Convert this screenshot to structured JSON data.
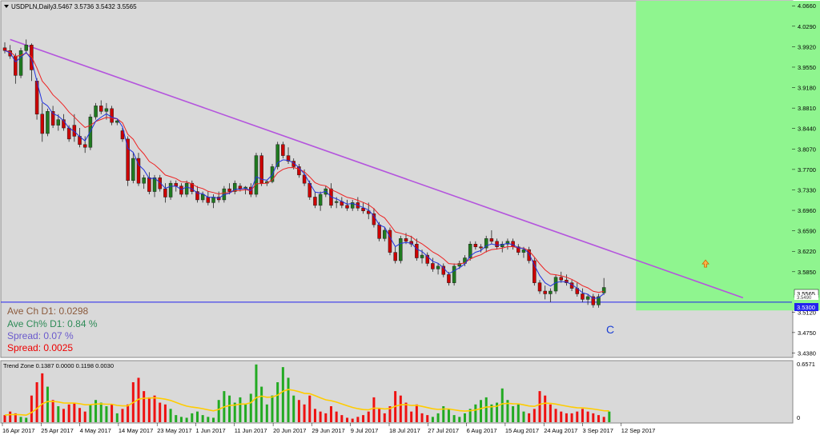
{
  "header": {
    "symbol_label": "USDPLN,Daily",
    "ohlc": "3.5467 3.5736 3.5432 3.5565"
  },
  "info": {
    "ave_ch": "Ave Ch D1: 0.0298",
    "ave_ch_pct": "Ave Ch% D1: 0.84 %",
    "spread_pct": "Spread: 0.07 %",
    "spread": "Spread: 0.0025"
  },
  "annotations": {
    "wave_label": "C"
  },
  "price_tags": {
    "last": "3.5565",
    "line": "3.5300",
    "stack_a": "3.5490",
    "stack_b": "3.5430"
  },
  "indicator": {
    "label": "Trend Zone 0.1387 0.0000 0.1198 0.0030",
    "max": "0.6571",
    "min": "0"
  },
  "colors": {
    "bg": "#d9d9d9",
    "bull": "#1f7a1f",
    "bear": "#cc0000",
    "zone": "#8ff58f",
    "trendline": "#b455dd",
    "hline": "#2222ee",
    "ma_fast": "#2233dd",
    "ma_slow": "#ee2222",
    "trend_ma": "#ffcc00"
  },
  "chart_data": [
    {
      "type": "candlestick",
      "title": "USDPLN,Daily",
      "y_ticks": [
        "4.0660",
        "4.0290",
        "3.9920",
        "3.9550",
        "3.9180",
        "3.8810",
        "3.8440",
        "3.8070",
        "3.7700",
        "3.7330",
        "3.6960",
        "3.6590",
        "3.6220",
        "3.5850",
        "3.5120",
        "3.4750",
        "3.4380"
      ],
      "ylim": [
        3.43,
        4.075
      ],
      "x_ticks": [
        "16 Apr 2017",
        "25 Apr 2017",
        "4 May 2017",
        "14 May 2017",
        "23 May 2017",
        "1 Jun 2017",
        "11 Jun 2017",
        "20 Jun 2017",
        "29 Jun 2017",
        "9 Jul 2017",
        "18 Jul 2017",
        "27 Jul 2017",
        "6 Aug 2017",
        "15 Aug 2017",
        "24 Aug 2017",
        "3 Sep 2017",
        "12 Sep 2017"
      ],
      "horizontal_line": 3.53,
      "trendline": [
        [
          1,
          4.005
        ],
        [
          138,
          3.538
        ]
      ],
      "target_zone": {
        "from_bar": 118,
        "to_bar": 160,
        "from_price": 3.515,
        "to_price": 4.075
      },
      "arrow": {
        "bar": 131,
        "price": 3.599
      },
      "ohlc": [
        [
          3.99,
          4.0,
          3.98,
          3.985
        ],
        [
          3.985,
          3.995,
          3.97,
          3.975
        ],
        [
          3.975,
          3.98,
          3.925,
          3.94
        ],
        [
          3.94,
          3.99,
          3.935,
          3.985
        ],
        [
          3.985,
          4.005,
          3.98,
          3.995
        ],
        [
          3.995,
          3.998,
          3.93,
          3.95
        ],
        [
          3.93,
          3.935,
          3.86,
          3.87
        ],
        [
          3.87,
          3.89,
          3.82,
          3.835
        ],
        [
          3.835,
          3.88,
          3.83,
          3.875
        ],
        [
          3.875,
          3.885,
          3.845,
          3.85
        ],
        [
          3.85,
          3.87,
          3.84,
          3.86
        ],
        [
          3.86,
          3.87,
          3.84,
          3.845
        ],
        [
          3.845,
          3.85,
          3.82,
          3.825
        ],
        [
          3.85,
          3.87,
          3.82,
          3.83
        ],
        [
          3.83,
          3.845,
          3.81,
          3.815
        ],
        [
          3.815,
          3.83,
          3.8,
          3.81
        ],
        [
          3.81,
          3.87,
          3.805,
          3.865
        ],
        [
          3.865,
          3.89,
          3.86,
          3.885
        ],
        [
          3.885,
          3.895,
          3.87,
          3.875
        ],
        [
          3.875,
          3.89,
          3.86,
          3.88
        ],
        [
          3.88,
          3.885,
          3.85,
          3.855
        ],
        [
          3.855,
          3.86,
          3.85,
          3.858
        ],
        [
          3.84,
          3.845,
          3.82,
          3.825
        ],
        [
          3.825,
          3.83,
          3.74,
          3.75
        ],
        [
          3.75,
          3.8,
          3.745,
          3.79
        ],
        [
          3.79,
          3.8,
          3.74,
          3.745
        ],
        [
          3.745,
          3.76,
          3.735,
          3.755
        ],
        [
          3.755,
          3.765,
          3.725,
          3.73
        ],
        [
          3.73,
          3.76,
          3.72,
          3.755
        ],
        [
          3.755,
          3.76,
          3.73,
          3.735
        ],
        [
          3.735,
          3.745,
          3.71,
          3.72
        ],
        [
          3.72,
          3.75,
          3.715,
          3.745
        ],
        [
          3.745,
          3.75,
          3.73,
          3.74
        ],
        [
          3.74,
          3.745,
          3.72,
          3.725
        ],
        [
          3.725,
          3.75,
          3.72,
          3.745
        ],
        [
          3.745,
          3.75,
          3.725,
          3.73
        ],
        [
          3.73,
          3.74,
          3.71,
          3.715
        ],
        [
          3.715,
          3.73,
          3.71,
          3.725
        ],
        [
          3.72,
          3.73,
          3.705,
          3.71
        ],
        [
          3.71,
          3.725,
          3.7,
          3.72
        ],
        [
          3.72,
          3.73,
          3.71,
          3.715
        ],
        [
          3.715,
          3.74,
          3.71,
          3.735
        ],
        [
          3.735,
          3.745,
          3.725,
          3.73
        ],
        [
          3.73,
          3.75,
          3.725,
          3.745
        ],
        [
          3.74,
          3.745,
          3.73,
          3.735
        ],
        [
          3.735,
          3.74,
          3.725,
          3.738
        ],
        [
          3.738,
          3.745,
          3.72,
          3.725
        ],
        [
          3.725,
          3.8,
          3.72,
          3.795
        ],
        [
          3.795,
          3.8,
          3.74,
          3.745
        ],
        [
          3.745,
          3.75,
          3.74,
          3.748
        ],
        [
          3.748,
          3.78,
          3.745,
          3.775
        ],
        [
          3.775,
          3.82,
          3.77,
          3.815
        ],
        [
          3.815,
          3.82,
          3.79,
          3.795
        ],
        [
          3.795,
          3.81,
          3.78,
          3.785
        ],
        [
          3.785,
          3.79,
          3.77,
          3.775
        ],
        [
          3.775,
          3.78,
          3.755,
          3.76
        ],
        [
          3.76,
          3.77,
          3.74,
          3.745
        ],
        [
          3.745,
          3.75,
          3.715,
          3.72
        ],
        [
          3.72,
          3.73,
          3.7,
          3.705
        ],
        [
          3.705,
          3.73,
          3.695,
          3.725
        ],
        [
          3.725,
          3.74,
          3.72,
          3.735
        ],
        [
          3.735,
          3.745,
          3.7,
          3.705
        ],
        [
          3.71,
          3.72,
          3.7,
          3.712
        ],
        [
          3.712,
          3.72,
          3.7,
          3.705
        ],
        [
          3.705,
          3.715,
          3.695,
          3.7
        ],
        [
          3.7,
          3.715,
          3.695,
          3.71
        ],
        [
          3.71,
          3.72,
          3.695,
          3.7
        ],
        [
          3.7,
          3.71,
          3.69,
          3.695
        ],
        [
          3.695,
          3.71,
          3.68,
          3.69
        ],
        [
          3.69,
          3.7,
          3.665,
          3.67
        ],
        [
          3.67,
          3.675,
          3.64,
          3.645
        ],
        [
          3.645,
          3.665,
          3.64,
          3.66
        ],
        [
          3.66,
          3.665,
          3.615,
          3.62
        ],
        [
          3.62,
          3.63,
          3.6,
          3.605
        ],
        [
          3.605,
          3.65,
          3.6,
          3.645
        ],
        [
          3.645,
          3.655,
          3.635,
          3.64
        ],
        [
          3.64,
          3.65,
          3.63,
          3.635
        ],
        [
          3.635,
          3.645,
          3.605,
          3.61
        ],
        [
          3.61,
          3.625,
          3.6,
          3.615
        ],
        [
          3.615,
          3.62,
          3.595,
          3.6
        ],
        [
          3.6,
          3.61,
          3.585,
          3.59
        ],
        [
          3.59,
          3.6,
          3.58,
          3.595
        ],
        [
          3.595,
          3.6,
          3.575,
          3.58
        ],
        [
          3.58,
          3.585,
          3.56,
          3.565
        ],
        [
          3.565,
          3.6,
          3.56,
          3.595
        ],
        [
          3.595,
          3.605,
          3.59,
          3.6
        ],
        [
          3.6,
          3.615,
          3.595,
          3.61
        ],
        [
          3.61,
          3.64,
          3.605,
          3.635
        ],
        [
          3.635,
          3.64,
          3.625,
          3.63
        ],
        [
          3.63,
          3.635,
          3.62,
          3.628
        ],
        [
          3.628,
          3.65,
          3.62,
          3.645
        ],
        [
          3.645,
          3.66,
          3.635,
          3.64
        ],
        [
          3.64,
          3.645,
          3.625,
          3.63
        ],
        [
          3.63,
          3.64,
          3.62,
          3.635
        ],
        [
          3.635,
          3.645,
          3.625,
          3.64
        ],
        [
          3.64,
          3.645,
          3.625,
          3.63
        ],
        [
          3.63,
          3.635,
          3.615,
          3.62
        ],
        [
          3.62,
          3.63,
          3.61,
          3.625
        ],
        [
          3.625,
          3.63,
          3.6,
          3.605
        ],
        [
          3.605,
          3.61,
          3.56,
          3.565
        ],
        [
          3.565,
          3.57,
          3.545,
          3.55
        ],
        [
          3.55,
          3.56,
          3.535,
          3.545
        ],
        [
          3.545,
          3.555,
          3.53,
          3.55
        ],
        [
          3.55,
          3.58,
          3.545,
          3.575
        ],
        [
          3.575,
          3.585,
          3.565,
          3.57
        ],
        [
          3.57,
          3.58,
          3.56,
          3.565
        ],
        [
          3.565,
          3.57,
          3.55,
          3.555
        ],
        [
          3.555,
          3.565,
          3.54,
          3.545
        ],
        [
          3.545,
          3.555,
          3.53,
          3.535
        ],
        [
          3.535,
          3.545,
          3.525,
          3.54
        ],
        [
          3.54,
          3.545,
          3.52,
          3.525
        ],
        [
          3.525,
          3.545,
          3.52,
          3.54
        ],
        [
          3.5467,
          3.5736,
          3.5432,
          3.5565
        ]
      ],
      "ma_fast_label": "blue moving average",
      "ma_slow_label": "red moving average"
    },
    {
      "type": "bar",
      "title": "Trend Zone",
      "ylim": [
        0,
        0.6571
      ],
      "values": [
        0.08,
        0.12,
        0.1,
        0.06,
        0.05,
        0.3,
        0.45,
        0.55,
        0.4,
        0.25,
        0.18,
        0.15,
        0.2,
        0.22,
        0.16,
        0.12,
        0.2,
        0.25,
        0.22,
        0.18,
        0.2,
        0.1,
        0.15,
        0.2,
        0.45,
        0.5,
        0.35,
        0.28,
        0.3,
        0.22,
        0.2,
        0.15,
        0.08,
        0.06,
        0.05,
        0.1,
        0.12,
        0.08,
        0.06,
        0.05,
        0.25,
        0.35,
        0.3,
        0.22,
        0.28,
        0.2,
        0.32,
        0.65,
        0.4,
        0.2,
        0.3,
        0.45,
        0.62,
        0.5,
        0.3,
        0.25,
        0.2,
        0.3,
        0.15,
        0.12,
        0.1,
        0.18,
        0.12,
        0.08,
        0.05,
        0.04,
        0.06,
        0.08,
        0.12,
        0.28,
        0.15,
        0.1,
        0.18,
        0.35,
        0.3,
        0.22,
        0.12,
        0.2,
        0.1,
        0.08,
        0.06,
        0.1,
        0.18,
        0.15,
        0.08,
        0.06,
        0.1,
        0.15,
        0.2,
        0.25,
        0.28,
        0.2,
        0.22,
        0.38,
        0.25,
        0.18,
        0.2,
        0.12,
        0.1,
        0.15,
        0.35,
        0.3,
        0.2,
        0.15,
        0.12,
        0.1,
        0.1,
        0.12,
        0.15,
        0.12,
        0.1,
        0.08,
        0.06,
        0.12
      ],
      "directions": [
        -1,
        -1,
        -1,
        1,
        1,
        -1,
        -1,
        -1,
        1,
        -1,
        1,
        -1,
        -1,
        -1,
        -1,
        -1,
        1,
        1,
        1,
        1,
        -1,
        1,
        -1,
        -1,
        -1,
        -1,
        -1,
        -1,
        -1,
        -1,
        -1,
        1,
        1,
        1,
        1,
        1,
        1,
        1,
        1,
        1,
        1,
        1,
        1,
        1,
        1,
        1,
        1,
        1,
        1,
        1,
        1,
        1,
        1,
        1,
        1,
        -1,
        -1,
        -1,
        -1,
        -1,
        -1,
        -1,
        -1,
        -1,
        -1,
        -1,
        -1,
        -1,
        -1,
        -1,
        -1,
        -1,
        -1,
        -1,
        -1,
        -1,
        -1,
        -1,
        -1,
        -1,
        1,
        1,
        1,
        1,
        1,
        1,
        1,
        1,
        1,
        1,
        1,
        1,
        1,
        1,
        1,
        1,
        1,
        1,
        -1,
        -1,
        -1,
        -1,
        -1,
        -1,
        -1,
        -1,
        -1,
        -1,
        -1,
        -1,
        -1,
        -1,
        -1,
        1
      ],
      "trend_ma_label": "yellow average line"
    }
  ]
}
